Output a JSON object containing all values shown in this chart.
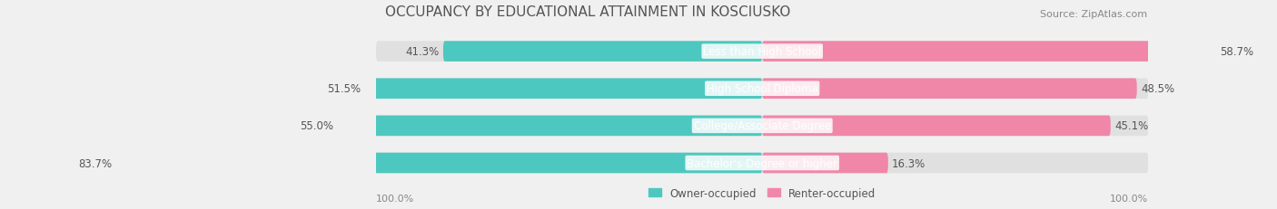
{
  "title": "OCCUPANCY BY EDUCATIONAL ATTAINMENT IN KOSCIUSKO",
  "source": "Source: ZipAtlas.com",
  "categories": [
    "Less than High School",
    "High School Diploma",
    "College/Associate Degree",
    "Bachelor's Degree or higher"
  ],
  "owner_values": [
    41.3,
    51.5,
    55.0,
    83.7
  ],
  "renter_values": [
    58.7,
    48.5,
    45.1,
    16.3
  ],
  "owner_color": "#4DC8C0",
  "renter_color": "#F087A8",
  "bar_height": 0.55,
  "background_color": "#f0f0f0",
  "bar_bg_color": "#e0e0e0",
  "label_color_owner": "#555555",
  "label_color_renter": "#555555",
  "axis_label_left": "100.0%",
  "axis_label_right": "100.0%",
  "legend_owner": "Owner-occupied",
  "legend_renter": "Renter-occupied",
  "title_fontsize": 11,
  "source_fontsize": 8,
  "label_fontsize": 8.5,
  "category_fontsize": 8.5,
  "tick_fontsize": 8
}
